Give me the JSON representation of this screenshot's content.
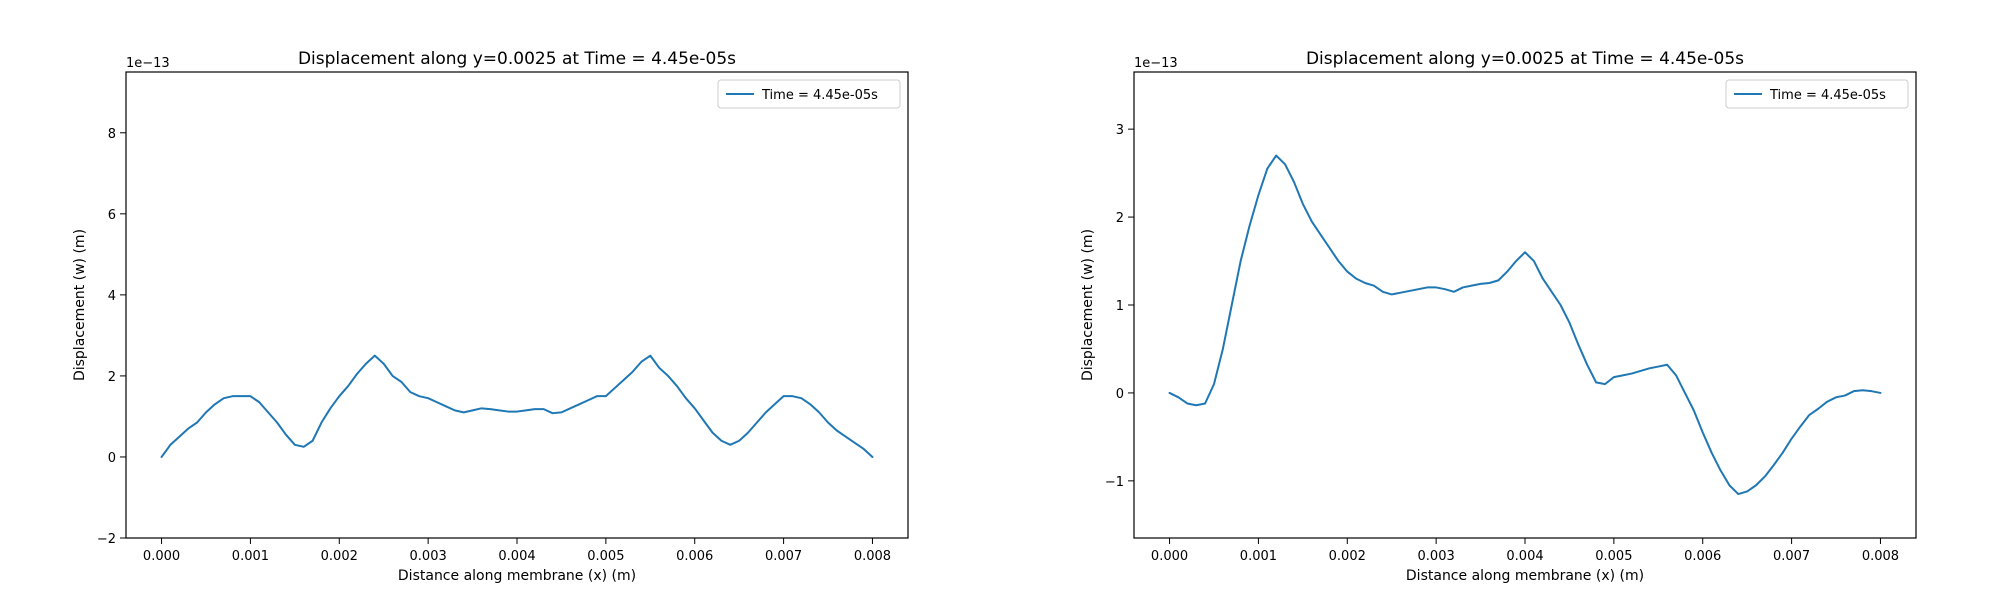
{
  "chart_data": [
    {
      "type": "line",
      "title": "Displacement along y=0.0025 at Time = 4.45e-05s",
      "xlabel": "Distance along membrane (x) (m)",
      "ylabel": "Displacement (w) (m)",
      "y_offset_label": "1e−13",
      "xlim": [
        -0.0004,
        0.0084
      ],
      "ylim": [
        -2,
        9.5
      ],
      "xticks": [
        0.0,
        0.001,
        0.002,
        0.003,
        0.004,
        0.005,
        0.006,
        0.007,
        0.008
      ],
      "xtick_labels": [
        "0.000",
        "0.001",
        "0.002",
        "0.003",
        "0.004",
        "0.005",
        "0.006",
        "0.007",
        "0.008"
      ],
      "yticks": [
        -2,
        0,
        2,
        4,
        6,
        8
      ],
      "ytick_labels": [
        "−2",
        "0",
        "2",
        "4",
        "6",
        "8"
      ],
      "grid": false,
      "legend_position": "top-right",
      "series": [
        {
          "name": "Time = 4.45e-05s",
          "color": "#1f77b4",
          "x": [
            0.0,
            0.0001,
            0.0002,
            0.0003,
            0.0004,
            0.0005,
            0.0006,
            0.0007,
            0.0008,
            0.0009,
            0.001,
            0.0011,
            0.0012,
            0.0013,
            0.0014,
            0.0015,
            0.0016,
            0.0017,
            0.0018,
            0.0019,
            0.002,
            0.0021,
            0.0022,
            0.0023,
            0.0024,
            0.0025,
            0.0026,
            0.0027,
            0.0028,
            0.0029,
            0.003,
            0.0031,
            0.0032,
            0.0033,
            0.0034,
            0.0035,
            0.0036,
            0.0037,
            0.0038,
            0.0039,
            0.004,
            0.0041,
            0.0042,
            0.0043,
            0.0044,
            0.0045,
            0.0046,
            0.0047,
            0.0048,
            0.0049,
            0.005,
            0.0051,
            0.0052,
            0.0053,
            0.0054,
            0.0055,
            0.0056,
            0.0057,
            0.0058,
            0.0059,
            0.006,
            0.0061,
            0.0062,
            0.0063,
            0.0064,
            0.0065,
            0.0066,
            0.0067,
            0.0068,
            0.0069,
            0.007,
            0.0071,
            0.0072,
            0.0073,
            0.0074,
            0.0075,
            0.0076,
            0.0077,
            0.0078,
            0.0079,
            0.008
          ],
          "y": [
            0.0,
            0.3,
            0.5,
            0.7,
            0.85,
            1.1,
            1.3,
            1.45,
            1.5,
            1.5,
            1.5,
            1.35,
            1.1,
            0.85,
            0.55,
            0.3,
            0.25,
            0.4,
            0.85,
            1.2,
            1.5,
            1.75,
            2.05,
            2.3,
            2.5,
            2.3,
            2.0,
            1.85,
            1.6,
            1.5,
            1.45,
            1.35,
            1.25,
            1.15,
            1.1,
            1.15,
            1.2,
            1.18,
            1.15,
            1.12,
            1.12,
            1.15,
            1.18,
            1.18,
            1.08,
            1.1,
            1.2,
            1.3,
            1.4,
            1.5,
            1.5,
            1.7,
            1.9,
            2.1,
            2.35,
            2.5,
            2.2,
            2.0,
            1.75,
            1.45,
            1.2,
            0.9,
            0.6,
            0.4,
            0.3,
            0.4,
            0.6,
            0.85,
            1.1,
            1.3,
            1.5,
            1.5,
            1.45,
            1.3,
            1.1,
            0.85,
            0.65,
            0.5,
            0.35,
            0.2,
            0.0
          ]
        }
      ]
    },
    {
      "type": "line",
      "title": "Displacement along y=0.0025 at Time = 4.45e-05s",
      "xlabel": "Distance along membrane (x) (m)",
      "ylabel": "Displacement (w) (m)",
      "y_offset_label": "1e−13",
      "xlim": [
        -0.0004,
        0.0084
      ],
      "ylim": [
        -1.65,
        3.65
      ],
      "xticks": [
        0.0,
        0.001,
        0.002,
        0.003,
        0.004,
        0.005,
        0.006,
        0.007,
        0.008
      ],
      "xtick_labels": [
        "0.000",
        "0.001",
        "0.002",
        "0.003",
        "0.004",
        "0.005",
        "0.006",
        "0.007",
        "0.008"
      ],
      "yticks": [
        -1,
        0,
        1,
        2,
        3
      ],
      "ytick_labels": [
        "−1",
        "0",
        "1",
        "2",
        "3"
      ],
      "grid": false,
      "legend_position": "top-right",
      "series": [
        {
          "name": "Time = 4.45e-05s",
          "color": "#1f77b4",
          "x": [
            0.0,
            0.0001,
            0.0002,
            0.0003,
            0.0004,
            0.0005,
            0.0006,
            0.0007,
            0.0008,
            0.0009,
            0.001,
            0.0011,
            0.0012,
            0.0013,
            0.0014,
            0.0015,
            0.0016,
            0.0017,
            0.0018,
            0.0019,
            0.002,
            0.0021,
            0.0022,
            0.0023,
            0.0024,
            0.0025,
            0.0026,
            0.0027,
            0.0028,
            0.0029,
            0.003,
            0.0031,
            0.0032,
            0.0033,
            0.0034,
            0.0035,
            0.0036,
            0.0037,
            0.0038,
            0.0039,
            0.004,
            0.0041,
            0.0042,
            0.0043,
            0.0044,
            0.0045,
            0.0046,
            0.0047,
            0.0048,
            0.0049,
            0.005,
            0.0051,
            0.0052,
            0.0053,
            0.0054,
            0.0055,
            0.0056,
            0.0057,
            0.0058,
            0.0059,
            0.006,
            0.0061,
            0.0062,
            0.0063,
            0.0064,
            0.0065,
            0.0066,
            0.0067,
            0.0068,
            0.0069,
            0.007,
            0.0071,
            0.0072,
            0.0073,
            0.0074,
            0.0075,
            0.0076,
            0.0077,
            0.0078,
            0.0079,
            0.008
          ],
          "y": [
            0.0,
            -0.05,
            -0.12,
            -0.14,
            -0.12,
            0.1,
            0.5,
            1.0,
            1.5,
            1.9,
            2.25,
            2.55,
            2.7,
            2.6,
            2.4,
            2.15,
            1.95,
            1.8,
            1.65,
            1.5,
            1.38,
            1.3,
            1.25,
            1.22,
            1.15,
            1.12,
            1.14,
            1.16,
            1.18,
            1.2,
            1.2,
            1.18,
            1.15,
            1.2,
            1.22,
            1.24,
            1.25,
            1.28,
            1.38,
            1.5,
            1.6,
            1.5,
            1.3,
            1.15,
            1.0,
            0.8,
            0.55,
            0.32,
            0.12,
            0.1,
            0.18,
            0.2,
            0.22,
            0.25,
            0.28,
            0.3,
            0.32,
            0.2,
            0.0,
            -0.2,
            -0.45,
            -0.68,
            -0.88,
            -1.05,
            -1.15,
            -1.12,
            -1.05,
            -0.95,
            -0.82,
            -0.68,
            -0.52,
            -0.38,
            -0.25,
            -0.18,
            -0.1,
            -0.05,
            -0.03,
            0.02,
            0.03,
            0.02,
            0.0
          ]
        }
      ]
    }
  ]
}
